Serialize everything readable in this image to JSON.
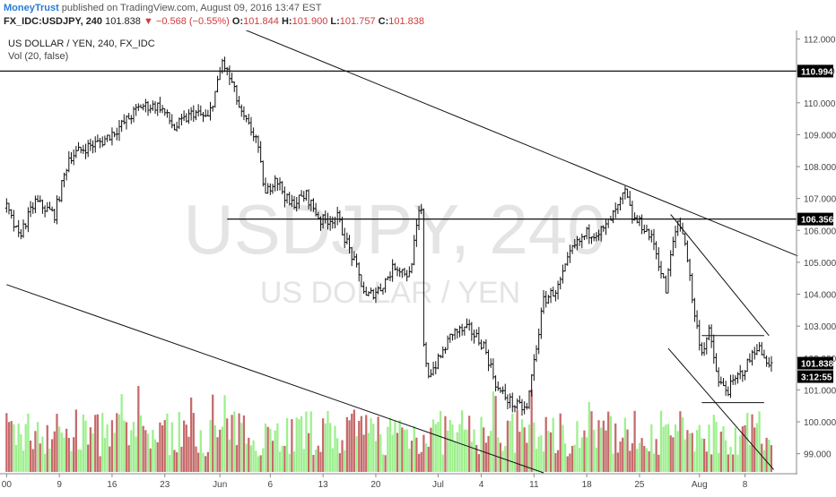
{
  "header": {
    "author": "MoneyTrust",
    "published_text": "published on TradingView.com, August 09, 2016 13:47 EST",
    "symbol": "FX_IDC:USDJPY, 240",
    "last": "101.838",
    "change_arrow": "▼",
    "change": "−0.568 (−0.55%)",
    "o_label": "O:",
    "o_value": "101.844",
    "h_label": "H:",
    "h_value": "101.900",
    "l_label": "L:",
    "l_value": "101.757",
    "c_label": "C:",
    "c_value": "101.838"
  },
  "legend": {
    "series_title": "US DOLLAR / YEN, 240, FX_IDC",
    "volume_label": "Vol (20, false)"
  },
  "watermark": {
    "ticker": "USDJPY, 240",
    "name": "US DOLLAR / YEN"
  },
  "colors": {
    "up_volume": "#9cf08c",
    "down_volume": "#c56a6a",
    "candle": "#111111",
    "line": "#111111",
    "watermark": "#e4e4e4",
    "price_badge": "#000000",
    "axis_text": "#444444"
  },
  "chart_data": {
    "type": "line",
    "title": "US DOLLAR / YEN, 240, FX_IDC",
    "timeframe": "240",
    "ylim": [
      98.4,
      112.1
    ],
    "y_ticks": [
      99.0,
      100.0,
      101.0,
      102.0,
      103.0,
      104.0,
      105.0,
      106.0,
      107.0,
      108.0,
      109.0,
      110.0,
      111.0,
      112.0
    ],
    "x_ticks": [
      "00",
      "9",
      "16",
      "23",
      "Jun",
      "6",
      "13",
      "20",
      "Jul",
      "4",
      "11",
      "18",
      "25",
      "Aug",
      "8"
    ],
    "bars_total": 330,
    "tick_bar_index": [
      0,
      22,
      44,
      66,
      89,
      110,
      132,
      154,
      180,
      198,
      220,
      242,
      264,
      289,
      308
    ],
    "price_path": [
      [
        0,
        106.7
      ],
      [
        5,
        105.8
      ],
      [
        12,
        106.9
      ],
      [
        20,
        106.5
      ],
      [
        26,
        108.3
      ],
      [
        33,
        108.6
      ],
      [
        40,
        108.8
      ],
      [
        48,
        109.3
      ],
      [
        56,
        109.9
      ],
      [
        64,
        109.9
      ],
      [
        70,
        109.2
      ],
      [
        78,
        109.7
      ],
      [
        84,
        109.5
      ],
      [
        88,
        110.6
      ],
      [
        90,
        111.3
      ],
      [
        94,
        110.6
      ],
      [
        98,
        109.6
      ],
      [
        104,
        108.9
      ],
      [
        108,
        107.1
      ],
      [
        112,
        107.7
      ],
      [
        118,
        106.8
      ],
      [
        125,
        107.1
      ],
      [
        131,
        106.3
      ],
      [
        138,
        106.4
      ],
      [
        145,
        105.0
      ],
      [
        150,
        103.9
      ],
      [
        156,
        104.2
      ],
      [
        162,
        104.9
      ],
      [
        168,
        104.6
      ],
      [
        172,
        106.5
      ],
      [
        173,
        106.6
      ],
      [
        174,
        102.3
      ],
      [
        176,
        101.5
      ],
      [
        180,
        101.9
      ],
      [
        186,
        102.8
      ],
      [
        193,
        102.9
      ],
      [
        199,
        102.4
      ],
      [
        205,
        101.0
      ],
      [
        212,
        100.5
      ],
      [
        217,
        100.4
      ],
      [
        220,
        101.9
      ],
      [
        224,
        103.8
      ],
      [
        230,
        104.2
      ],
      [
        236,
        105.4
      ],
      [
        242,
        105.9
      ],
      [
        249,
        106.0
      ],
      [
        255,
        106.7
      ],
      [
        258,
        107.2
      ],
      [
        261,
        106.4
      ],
      [
        266,
        106.1
      ],
      [
        270,
        105.6
      ],
      [
        275,
        104.1
      ],
      [
        277,
        105.2
      ],
      [
        280,
        106.3
      ],
      [
        283,
        105.7
      ],
      [
        287,
        103.3
      ],
      [
        290,
        102.2
      ],
      [
        293,
        102.8
      ],
      [
        297,
        101.2
      ],
      [
        301,
        101.0
      ],
      [
        305,
        101.4
      ],
      [
        309,
        101.8
      ],
      [
        313,
        102.4
      ],
      [
        316,
        102.0
      ],
      [
        319,
        101.84
      ]
    ],
    "horizontal_levels": [
      {
        "value": 110.994,
        "label": "110.994"
      },
      {
        "value": 106.356,
        "label": "106.356"
      }
    ],
    "current_price": {
      "value": 101.838,
      "label": "101.838",
      "countdown": "3:12:55"
    },
    "trendlines": [
      {
        "points": [
          [
            60,
            113.5
          ],
          [
            330,
            105.2
          ]
        ]
      },
      {
        "points": [
          [
            0,
            104.3
          ],
          [
            224,
            98.4
          ]
        ]
      },
      {
        "points": [
          [
            277,
            106.5
          ],
          [
            318,
            102.7
          ]
        ]
      },
      {
        "points": [
          [
            276,
            102.3
          ],
          [
            320,
            98.5
          ]
        ]
      },
      {
        "points": [
          [
            290,
            102.7
          ],
          [
            316,
            102.7
          ]
        ]
      },
      {
        "points": [
          [
            290,
            100.6
          ],
          [
            316,
            100.6
          ]
        ]
      }
    ],
    "volume": {
      "label": "Vol (20, false)",
      "max_height_fraction": 1.0
    }
  }
}
